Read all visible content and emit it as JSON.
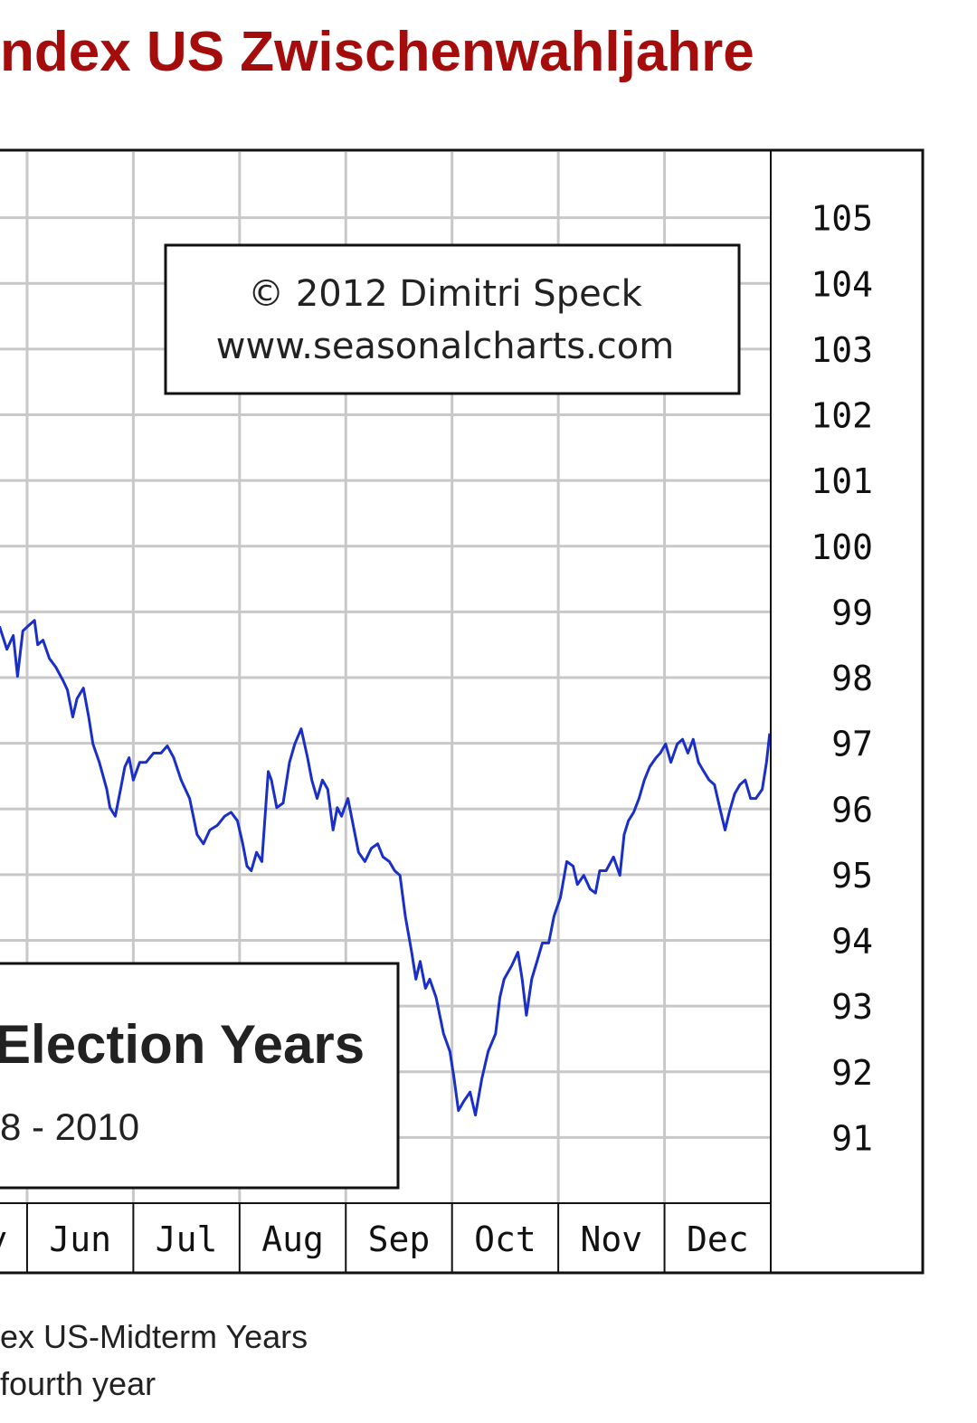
{
  "chart_data": {
    "type": "line",
    "title": "ndex US Zwischenwahljahre",
    "annotations": [
      "© 2012  Dimitri Speck",
      "www.seasonalcharts.com"
    ],
    "inset": {
      "title": "Election Years",
      "subtitle": "8 - 2010"
    },
    "caption": [
      "ex US-Midterm Years",
      "fourth year"
    ],
    "categories": [
      "y",
      "Jun",
      "Jul",
      "Aug",
      "Sep",
      "Oct",
      "Nov",
      "Dec"
    ],
    "x": [
      4.74,
      4.81,
      4.87,
      4.91,
      4.96,
      5.02,
      5.07,
      5.1,
      5.15,
      5.21,
      5.27,
      5.34,
      5.38,
      5.43,
      5.47,
      5.53,
      5.58,
      5.62,
      5.68,
      5.75,
      5.78,
      5.83,
      5.88,
      5.92,
      5.96,
      6.0,
      6.06,
      6.12,
      6.19,
      6.26,
      6.32,
      6.38,
      6.45,
      6.49,
      6.53,
      6.6,
      6.66,
      6.72,
      6.79,
      6.86,
      6.92,
      6.98,
      7.03,
      7.07,
      7.11,
      7.16,
      7.21,
      7.27,
      7.3,
      7.35,
      7.41,
      7.47,
      7.52,
      7.58,
      7.64,
      7.68,
      7.73,
      7.78,
      7.83,
      7.88,
      7.92,
      7.96,
      8.02,
      8.07,
      8.12,
      8.18,
      8.24,
      8.3,
      8.35,
      8.41,
      8.46,
      8.51,
      8.56,
      8.62,
      8.66,
      8.7,
      8.75,
      8.79,
      8.85,
      8.92,
      8.98,
      9.02,
      9.06,
      9.11,
      9.17,
      9.22,
      9.28,
      9.34,
      9.41,
      9.45,
      9.49,
      9.56,
      9.62,
      9.66,
      9.7,
      9.75,
      9.8,
      9.85,
      9.91,
      9.96,
      10.02,
      10.08,
      10.14,
      10.18,
      10.24,
      10.3,
      10.35,
      10.39,
      10.45,
      10.52,
      10.58,
      10.62,
      10.66,
      10.71,
      10.76,
      10.81,
      10.86,
      10.92,
      10.96,
      11.01,
      11.06,
      11.12,
      11.17,
      11.22,
      11.27,
      11.32,
      11.37,
      11.42,
      11.47,
      11.52,
      11.57,
      11.61,
      11.66,
      11.71,
      11.76,
      11.81,
      11.86,
      11.92,
      11.96,
      11.99
    ],
    "values": [
      98.78,
      98.43,
      98.64,
      98.02,
      98.71,
      98.8,
      98.87,
      98.5,
      98.57,
      98.29,
      98.16,
      97.95,
      97.81,
      97.4,
      97.68,
      97.84,
      97.4,
      96.99,
      96.71,
      96.3,
      96.02,
      95.89,
      96.3,
      96.64,
      96.78,
      96.44,
      96.71,
      96.71,
      96.85,
      96.85,
      96.96,
      96.78,
      96.44,
      96.3,
      96.16,
      95.61,
      95.47,
      95.68,
      95.75,
      95.89,
      95.95,
      95.82,
      95.47,
      95.13,
      95.06,
      95.34,
      95.2,
      96.57,
      96.44,
      96.02,
      96.09,
      96.71,
      96.99,
      97.22,
      96.78,
      96.44,
      96.16,
      96.44,
      96.3,
      95.68,
      96.02,
      95.89,
      96.16,
      95.75,
      95.34,
      95.2,
      95.4,
      95.47,
      95.27,
      95.2,
      95.06,
      94.99,
      94.37,
      93.82,
      93.41,
      93.68,
      93.27,
      93.41,
      93.13,
      92.58,
      92.31,
      91.89,
      91.41,
      91.55,
      91.69,
      91.34,
      91.89,
      92.31,
      92.58,
      93.13,
      93.41,
      93.61,
      93.82,
      93.41,
      92.86,
      93.41,
      93.68,
      93.96,
      93.96,
      94.37,
      94.65,
      95.2,
      95.13,
      94.85,
      94.99,
      94.78,
      94.72,
      95.06,
      95.06,
      95.27,
      94.99,
      95.61,
      95.82,
      95.95,
      96.16,
      96.44,
      96.64,
      96.78,
      96.85,
      96.99,
      96.71,
      96.99,
      97.06,
      96.85,
      97.06,
      96.71,
      96.57,
      96.44,
      96.37,
      96.02,
      95.68,
      95.95,
      96.23,
      96.37,
      96.44,
      96.16,
      96.16,
      96.3,
      96.71,
      97.15
    ],
    "color": "#1a2ec8",
    "xlim": [
      4.745,
      12
    ],
    "ylim": [
      90,
      106
    ],
    "yticks": [
      91,
      92,
      93,
      94,
      95,
      96,
      97,
      98,
      99,
      100,
      101,
      102,
      103,
      104,
      105
    ],
    "grid": true
  }
}
